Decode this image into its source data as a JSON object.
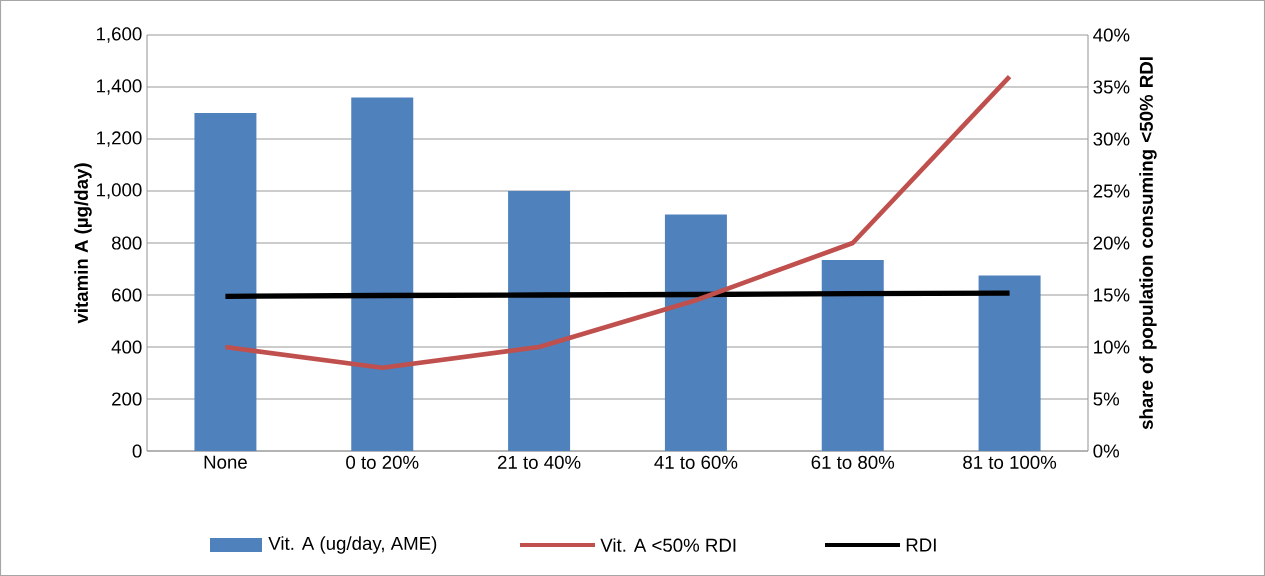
{
  "chart_data": {
    "type": "bar",
    "xlabel": null,
    "ylabel": "vitamin A (µg/day)",
    "y2label": "share of population consuming <50% RDI",
    "categories": [
      "None",
      "0 to 20%",
      "21 to 40%",
      "41 to 60%",
      "61 to 80%",
      "81 to 100%"
    ],
    "series": [
      {
        "name": "Vit. A (ug/day, AME)",
        "color": "#4f81bd",
        "values": [
          1300,
          1360,
          1000,
          910,
          735,
          675
        ]
      },
      {
        "name": "Vit. A <50% RDI",
        "type": "line",
        "axis": "y2",
        "color": "#c0504d",
        "values": [
          10,
          8,
          10,
          14.5,
          20,
          36
        ]
      },
      {
        "name": "RDI",
        "type": "line",
        "color": "#000000",
        "values": [
          595,
          598,
          600,
          602,
          605,
          607
        ]
      }
    ],
    "ylim": [
      0,
      1600
    ],
    "yticks": [
      {
        "value": 0,
        "label": "0"
      },
      {
        "value": 200,
        "label": "200"
      },
      {
        "value": 400,
        "label": "400"
      },
      {
        "value": 600,
        "label": "600"
      },
      {
        "value": 800,
        "label": "800"
      },
      {
        "value": 1000,
        "label": "1,000"
      },
      {
        "value": 1200,
        "label": "1,200"
      },
      {
        "value": 1400,
        "label": "1,400"
      },
      {
        "value": 1600,
        "label": "1,600"
      }
    ],
    "y2lim": [
      0,
      40
    ],
    "y2ticks": [
      {
        "value": 0,
        "label": "0%"
      },
      {
        "value": 5,
        "label": "5%"
      },
      {
        "value": 10,
        "label": "10%"
      },
      {
        "value": 15,
        "label": "15%"
      },
      {
        "value": 20,
        "label": "20%"
      },
      {
        "value": 25,
        "label": "25%"
      },
      {
        "value": 30,
        "label": "30%"
      },
      {
        "value": 35,
        "label": "35%"
      },
      {
        "value": 40,
        "label": "40%"
      }
    ],
    "grid": "y",
    "legend": "bottom",
    "marker": "none",
    "line_style": "solid"
  }
}
